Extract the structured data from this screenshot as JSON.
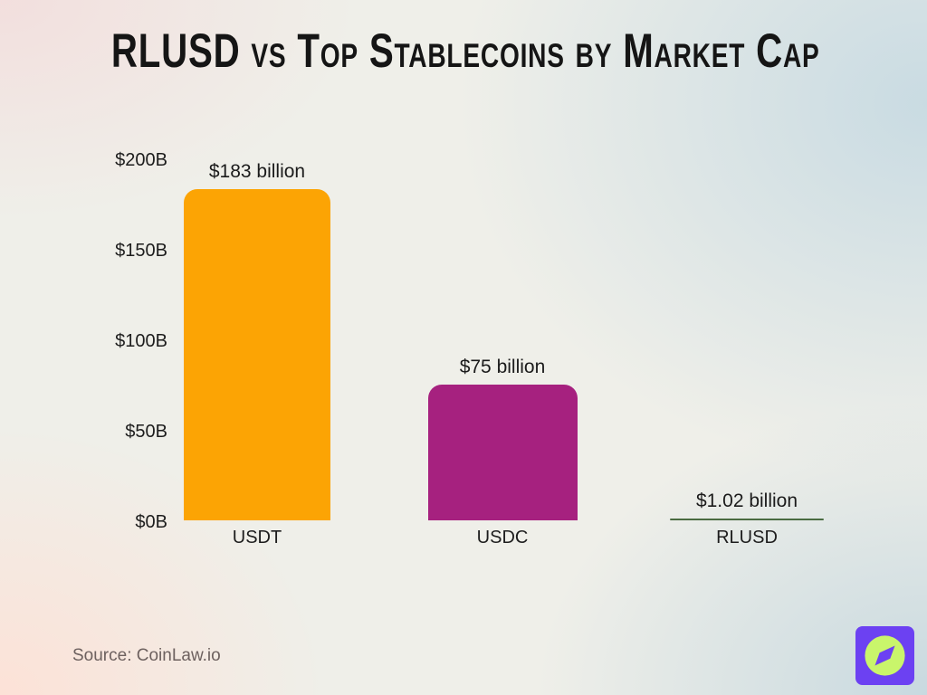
{
  "title": "RLUSD vs Top Stablecoins by Market Cap",
  "source": "Source: CoinLaw.io",
  "logo": {
    "icon": "compass-icon",
    "square_color": "#6C41F2",
    "circle_color": "#C9F56B"
  },
  "colors": {
    "title_text": "#151515",
    "axis_text": "#1d1d1d",
    "source_text": "#6d615f"
  },
  "chart_data": {
    "type": "bar",
    "title": "RLUSD vs Top Stablecoins by Market Cap",
    "categories": [
      "USDT",
      "USDC",
      "RLUSD"
    ],
    "values": [
      183,
      75,
      1.02
    ],
    "value_labels": [
      "$183 billion",
      "$75 billion",
      "$1.02 billion"
    ],
    "bar_colors": [
      "#FCA404",
      "#A6217F",
      "#4A6B41"
    ],
    "unit": "billions of USD",
    "xlabel": "",
    "ylabel": "",
    "ylim": [
      0,
      200
    ],
    "ytick_values": [
      0,
      50,
      100,
      150,
      200
    ],
    "ytick_labels": [
      "$0B",
      "$50B",
      "$100B",
      "$150B",
      "$200B"
    ],
    "grid": false,
    "legend": "none"
  }
}
